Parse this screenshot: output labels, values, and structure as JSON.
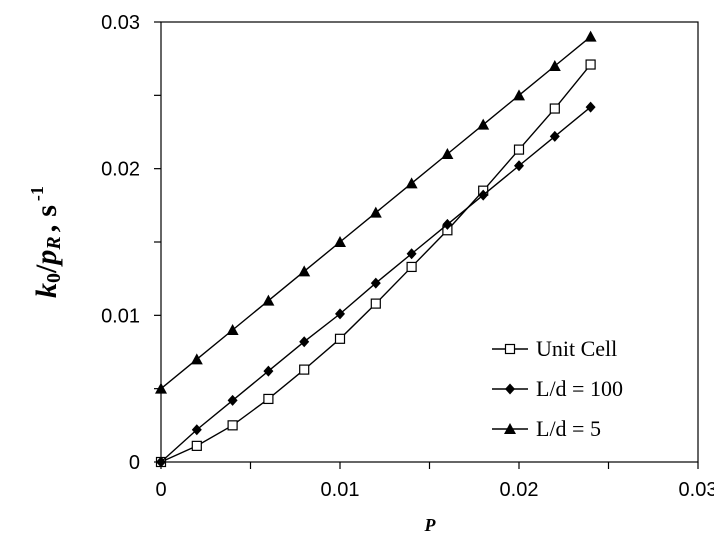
{
  "chart_data": {
    "type": "line",
    "title": "",
    "xlabel": "P",
    "ylabel": {
      "main": "k",
      "subscript": "0",
      "slash": "/",
      "p": "p",
      "p_subscript": "R",
      "comma": ",",
      "unit": "s",
      "unit_exponent": "-1"
    },
    "xlim": [
      0,
      0.03
    ],
    "ylim": [
      0,
      0.03
    ],
    "xticks": [
      "0",
      "0.01",
      "0.02",
      "0.03"
    ],
    "yticks": [
      "0",
      "0.01",
      "0.02",
      "0.03"
    ],
    "xtick_values": [
      0,
      0.01,
      0.02,
      0.03
    ],
    "ytick_values": [
      0,
      0.01,
      0.02,
      0.03
    ],
    "grid": false,
    "legend_position": "bottom-right",
    "series": [
      {
        "name": "Unit Cell",
        "marker": "open-square",
        "x": [
          0,
          0.002,
          0.004,
          0.006,
          0.008,
          0.01,
          0.012,
          0.014,
          0.016,
          0.018,
          0.02,
          0.022,
          0.024
        ],
        "y": [
          0,
          0.0011,
          0.0025,
          0.0043,
          0.0063,
          0.0084,
          0.0108,
          0.0133,
          0.0158,
          0.0185,
          0.0213,
          0.0241,
          0.0271
        ]
      },
      {
        "name": "L/d = 100",
        "marker": "filled-diamond",
        "x": [
          0,
          0.002,
          0.004,
          0.006,
          0.008,
          0.01,
          0.012,
          0.014,
          0.016,
          0.018,
          0.02,
          0.022,
          0.024
        ],
        "y": [
          0,
          0.0022,
          0.0042,
          0.0062,
          0.0082,
          0.0101,
          0.0122,
          0.0142,
          0.0162,
          0.0182,
          0.0202,
          0.0222,
          0.0242
        ]
      },
      {
        "name": "L/d = 5",
        "marker": "filled-triangle",
        "x": [
          0,
          0.002,
          0.004,
          0.006,
          0.008,
          0.01,
          0.012,
          0.014,
          0.016,
          0.018,
          0.02,
          0.022,
          0.024
        ],
        "y": [
          0.005,
          0.007,
          0.009,
          0.011,
          0.013,
          0.015,
          0.017,
          0.019,
          0.021,
          0.023,
          0.025,
          0.027,
          0.029
        ]
      }
    ]
  }
}
